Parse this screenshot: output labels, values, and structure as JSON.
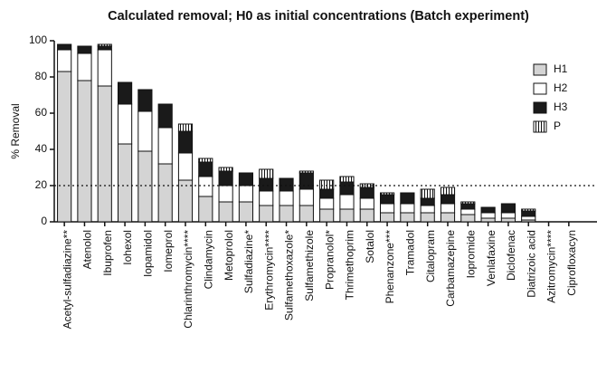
{
  "chart_data": {
    "type": "stacked_bar",
    "title": "Calculated removal; H0 as initial concentrations (Batch experiment)",
    "y_label": "% Removal",
    "categories": [
      "Acetyl-sulfadiazine**",
      "Atenolol",
      "Ibuprofen",
      "Iohexol",
      "Iopamidol",
      "Iomeprol",
      "Chlarinthromycin****",
      "Clindamycin",
      "Metoprolol",
      "Sulfadiazine*",
      "Erythromycin****",
      "Sulfamethoxazole*",
      "Sulfamethizole",
      "Propranolol*",
      "Thrimethoprim",
      "Sotalol",
      "Phenanzone***",
      "Tramadol",
      "Citalopram",
      "Carbamazepine",
      "Iopromide",
      "Venlafaxine",
      "Diclofenac",
      "Diatrizoic acid",
      "Azitromycin****",
      "Ciprofloxacyn"
    ],
    "series": [
      {
        "name": "H1",
        "color": "#d4d4d4",
        "pattern": "solid",
        "values": [
          83,
          78,
          75,
          43,
          39,
          32,
          23,
          14,
          11,
          11,
          9,
          9,
          9,
          7,
          7,
          7,
          5,
          5,
          5,
          5,
          4,
          2,
          2,
          1,
          0,
          0
        ]
      },
      {
        "name": "H2",
        "color": "#ffffff",
        "pattern": "solid",
        "values": [
          12,
          15,
          20,
          22,
          22,
          20,
          15,
          11,
          9,
          9,
          8,
          8,
          9,
          6,
          8,
          6,
          5,
          5,
          4,
          5,
          3,
          3,
          3,
          2,
          0,
          0
        ]
      },
      {
        "name": "H3",
        "color": "#1a1a1a",
        "pattern": "solid",
        "values": [
          3,
          4,
          2,
          12,
          12,
          13,
          12,
          8,
          8,
          7,
          7,
          7,
          9,
          5,
          7,
          6,
          5,
          6,
          4,
          5,
          3,
          3,
          5,
          3,
          0,
          0
        ]
      },
      {
        "name": "P",
        "color": "#ffffff",
        "pattern": "vertical-lines",
        "values": [
          0,
          0,
          1,
          0,
          0,
          0,
          4,
          2,
          2,
          0,
          5,
          0,
          1,
          5,
          3,
          2,
          1,
          0,
          5,
          4,
          1,
          0,
          0,
          1,
          0,
          0
        ]
      }
    ],
    "ylim": [
      0,
      100
    ],
    "yticks": [
      0,
      20,
      40,
      60,
      80,
      100
    ],
    "reference_line": 20,
    "legend": "upper right",
    "grid": false
  }
}
